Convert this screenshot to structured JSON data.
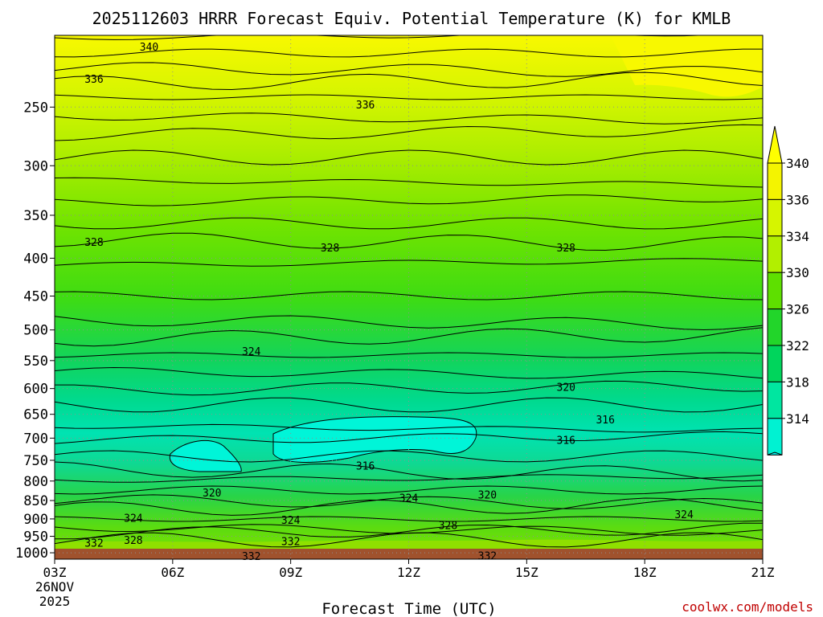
{
  "chart_data": {
    "type": "heatmap",
    "title": "2025112603 HRRR Forecast Equiv. Potential Temperature (K) for KMLB",
    "xlabel": "Forecast Time (UTC)",
    "ylabel": "",
    "credit": "coolwx.com/models",
    "x_ticks": [
      "03Z",
      "06Z",
      "09Z",
      "12Z",
      "15Z",
      "18Z",
      "21Z"
    ],
    "x_tick_values": [
      3,
      6,
      9,
      12,
      15,
      18,
      21
    ],
    "x_date_line1": "26NOV",
    "x_date_line2": "2025",
    "xlim": [
      3,
      21
    ],
    "y_ticks": [
      250,
      300,
      350,
      400,
      450,
      500,
      550,
      600,
      650,
      700,
      750,
      800,
      850,
      900,
      950,
      1000
    ],
    "ylim": [
      1020,
      200
    ],
    "y_scale": "log-pressure",
    "grid": "dotted",
    "colorbar": {
      "labels": [
        340,
        336,
        334,
        330,
        326,
        322,
        318,
        314
      ],
      "colors": [
        "#f4f400",
        "#d6f500",
        "#b2ef00",
        "#5ee000",
        "#22d52a",
        "#00d55c",
        "#00e6a0",
        "#00f2d2"
      ],
      "extend": "both",
      "top_extension_color": "#ffff00",
      "bottom_extension_color": "#00f5f0"
    },
    "contour_labels": [
      {
        "t": 5.4,
        "p": 207,
        "text": "340"
      },
      {
        "t": 4.0,
        "p": 229,
        "text": "336"
      },
      {
        "t": 10.9,
        "p": 248,
        "text": "336"
      },
      {
        "t": 4.0,
        "p": 380,
        "text": "328"
      },
      {
        "t": 10.0,
        "p": 387,
        "text": "328"
      },
      {
        "t": 16.0,
        "p": 387,
        "text": "328"
      },
      {
        "t": 8.0,
        "p": 534,
        "text": "324"
      },
      {
        "t": 16.0,
        "p": 597,
        "text": "320"
      },
      {
        "t": 17.0,
        "p": 660,
        "text": "316"
      },
      {
        "t": 16.0,
        "p": 704,
        "text": "316"
      },
      {
        "t": 10.9,
        "p": 762,
        "text": "316"
      },
      {
        "t": 7.0,
        "p": 829,
        "text": "320"
      },
      {
        "t": 14.0,
        "p": 834,
        "text": "320"
      },
      {
        "t": 12.0,
        "p": 843,
        "text": "324"
      },
      {
        "t": 19.0,
        "p": 887,
        "text": "324"
      },
      {
        "t": 5.0,
        "p": 897,
        "text": "324"
      },
      {
        "t": 9.0,
        "p": 903,
        "text": "324"
      },
      {
        "t": 13.0,
        "p": 917,
        "text": "328"
      },
      {
        "t": 5.0,
        "p": 961,
        "text": "328"
      },
      {
        "t": 4.0,
        "p": 969,
        "text": "332"
      },
      {
        "t": 9.0,
        "p": 964,
        "text": "332"
      },
      {
        "t": 8.0,
        "p": 1010,
        "text": "332"
      },
      {
        "t": 14.0,
        "p": 1008,
        "text": "332"
      }
    ]
  },
  "colors": {
    "ground": "#a0522d",
    "contour": "#000000",
    "grid": "#909090"
  }
}
